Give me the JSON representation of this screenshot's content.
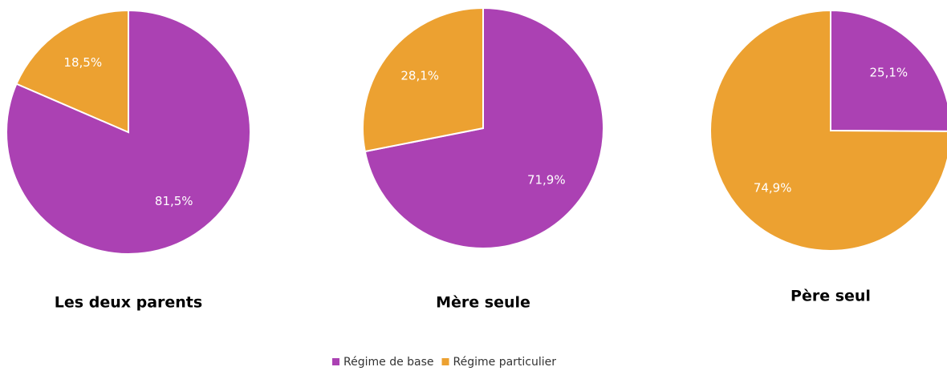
{
  "chart_data": [
    {
      "type": "pie",
      "title": "Les deux parents",
      "values": [
        81.5,
        18.5
      ],
      "value_labels": [
        "81,5%",
        "18,5%"
      ]
    },
    {
      "type": "pie",
      "title": "Mère seule",
      "values": [
        71.9,
        28.1
      ],
      "value_labels": [
        "71,9%",
        "28,1%"
      ]
    },
    {
      "type": "pie",
      "title": "Père seul",
      "values": [
        25.1,
        74.9
      ],
      "value_labels": [
        "25,1%",
        "74,9%"
      ]
    }
  ],
  "legend": {
    "categories": [
      "Régime de base",
      "Régime particulier"
    ],
    "colors": [
      "#ab41b3",
      "#eca131"
    ]
  }
}
